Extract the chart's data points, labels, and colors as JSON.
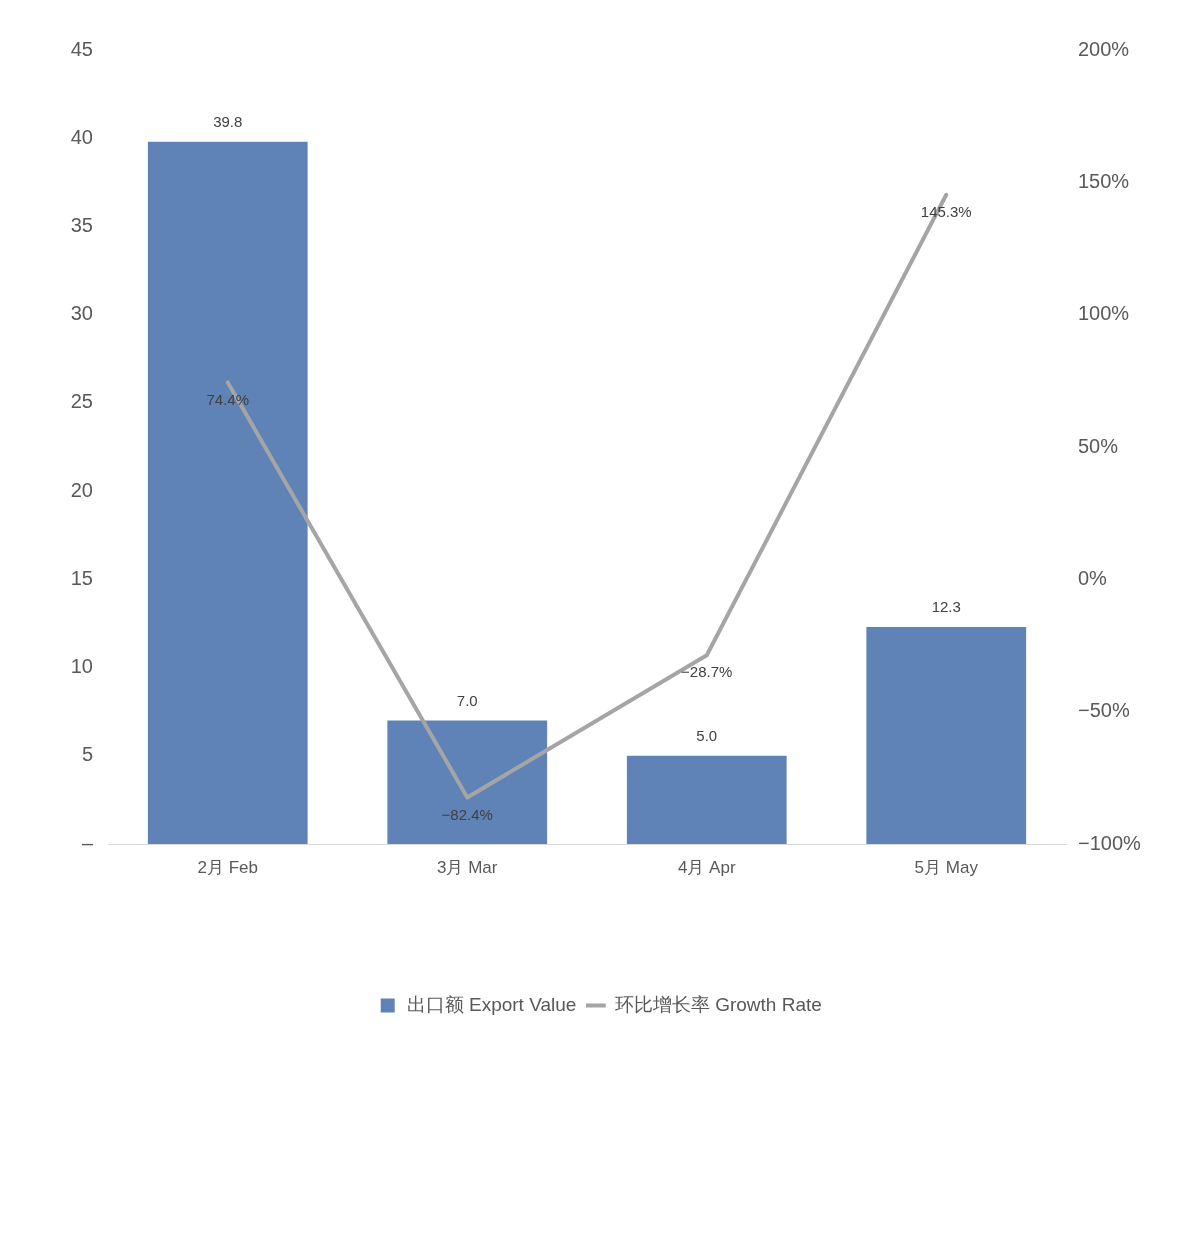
{
  "chart_data": {
    "type": "bar",
    "categories": [
      "2月 Feb",
      "3月 Mar",
      "4月 Apr",
      "5月 May"
    ],
    "series": [
      {
        "name": "出口额 Export Value",
        "color": "#5f83b6",
        "values": [
          39.8,
          7.0,
          5.0,
          12.3
        ],
        "value_labels": [
          "39.8",
          "7.0",
          "5.0",
          "12.3"
        ]
      },
      {
        "name": "环比增长率 Growth Rate",
        "type": "line",
        "axis": "y2",
        "color": "#a5a5a5",
        "values": [
          74.4,
          -82.4,
          -28.7,
          145.3
        ],
        "value_labels": [
          "74.4%",
          "−82.4%",
          "−28.7%",
          "145.3%"
        ]
      }
    ],
    "ylim": [
      0,
      45
    ],
    "yticks": [
      {
        "value": 0,
        "label": "–"
      },
      5,
      10,
      15,
      20,
      25,
      30,
      35,
      40,
      45
    ],
    "y2lim": [
      -100,
      200
    ],
    "y2ticks": [
      {
        "value": -100,
        "label": "−100%"
      },
      {
        "value": -50,
        "label": "−50%"
      },
      {
        "value": 0,
        "label": "0%"
      },
      {
        "value": 50,
        "label": "50%"
      },
      {
        "value": 100,
        "label": "100%"
      },
      {
        "value": 150,
        "label": "150%"
      },
      {
        "value": 200,
        "label": "200%"
      }
    ],
    "grid": false,
    "legend": "bottom",
    "marker": "none",
    "line_style": "solid"
  }
}
